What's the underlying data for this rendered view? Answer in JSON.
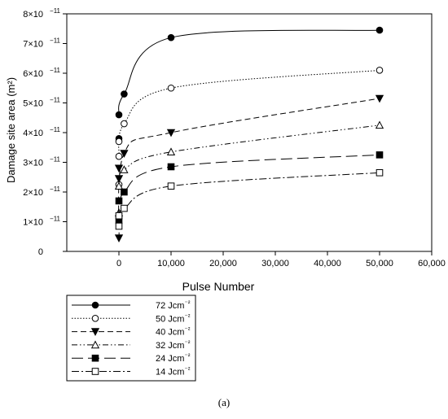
{
  "chart_data": {
    "type": "line",
    "xlabel": "Pulse Number",
    "ylabel": "Damage site area (m²)",
    "xlim": [
      -10000,
      60000
    ],
    "ylim": [
      0,
      8e-11
    ],
    "x_ticks": [
      0,
      10000,
      20000,
      30000,
      40000,
      50000,
      60000
    ],
    "x_tick_labels": [
      "0",
      "10,000",
      "20,000",
      "30,000",
      "40,000",
      "50,000",
      "60,000"
    ],
    "y_ticks": [
      0,
      1e-11,
      2e-11,
      3e-11,
      4e-11,
      5e-11,
      6e-11,
      7e-11,
      8e-11
    ],
    "y_tick_labels": [
      {
        "mantissa": "0",
        "exponent": ""
      },
      {
        "mantissa": "1×10",
        "exponent": "−11"
      },
      {
        "mantissa": "2×10",
        "exponent": "−11"
      },
      {
        "mantissa": "3×10",
        "exponent": "−11"
      },
      {
        "mantissa": "4×10",
        "exponent": "−11"
      },
      {
        "mantissa": "5×10",
        "exponent": "−11"
      },
      {
        "mantissa": "6×10",
        "exponent": "−11"
      },
      {
        "mantissa": "7×10",
        "exponent": "−11"
      },
      {
        "mantissa": "8×10",
        "exponent": "−11"
      }
    ],
    "grid": false,
    "legend_position": "below the plot, left",
    "series": [
      {
        "name": "72 Jcm⁻²",
        "marker": "filled-circle",
        "dash": "solid",
        "x": [
          0,
          1000,
          10000,
          50000
        ],
        "y": [
          4.6e-11,
          5.3e-11,
          7.2e-11,
          7.45e-11
        ]
      },
      {
        "name": "50 Jcm⁻²",
        "marker": "open-circle",
        "dash": "dotted",
        "x": [
          0,
          1000,
          10000,
          50000
        ],
        "y": [
          3.2e-11,
          4.3e-11,
          5.5e-11,
          6.1e-11
        ]
      },
      {
        "name": "40 Jcm⁻²",
        "marker": "filled-triangle-down",
        "dash": "dashed",
        "x": [
          0,
          1000,
          10000,
          50000
        ],
        "y": [
          4.5e-12,
          3.3e-11,
          4e-11,
          5.15e-11
        ]
      },
      {
        "name": "32 Jcm⁻²",
        "marker": "open-triangle-up",
        "dash": "dash-dot-dot",
        "x": [
          0,
          1000,
          10000,
          50000
        ],
        "y": [
          2.2e-11,
          2.75e-11,
          3.35e-11,
          4.25e-11
        ]
      },
      {
        "name": "24 Jcm⁻²",
        "marker": "filled-square",
        "dash": "long-dash",
        "x": [
          0,
          1000,
          10000,
          50000
        ],
        "y": [
          1.05e-11,
          2e-11,
          2.85e-11,
          3.25e-11
        ]
      },
      {
        "name": "14 Jcm⁻²",
        "marker": "open-square",
        "dash": "dash-dot",
        "x": [
          0,
          1000,
          10000,
          50000
        ],
        "y": [
          1.2e-11,
          1.45e-11,
          2.2e-11,
          2.65e-11
        ]
      }
    ],
    "extra_markers_near_zero": [
      {
        "series": "72 Jcm⁻²",
        "x": 0,
        "y": 3.8e-11
      },
      {
        "series": "50 Jcm⁻²",
        "x": 0,
        "y": 3.7e-11
      },
      {
        "series": "50 Jcm⁻²",
        "x": 0,
        "y": 2.25e-11
      },
      {
        "series": "40 Jcm⁻²",
        "x": 0,
        "y": 2.8e-11
      },
      {
        "series": "40 Jcm⁻²",
        "x": 0,
        "y": 2.45e-11
      },
      {
        "series": "32 Jcm⁻²",
        "x": 0,
        "y": 1.3e-11
      },
      {
        "series": "24 Jcm⁻²",
        "x": 0,
        "y": 1.7e-11
      },
      {
        "series": "14 Jcm⁻²",
        "x": 0,
        "y": 8.5e-12
      }
    ]
  },
  "caption": "(a)"
}
